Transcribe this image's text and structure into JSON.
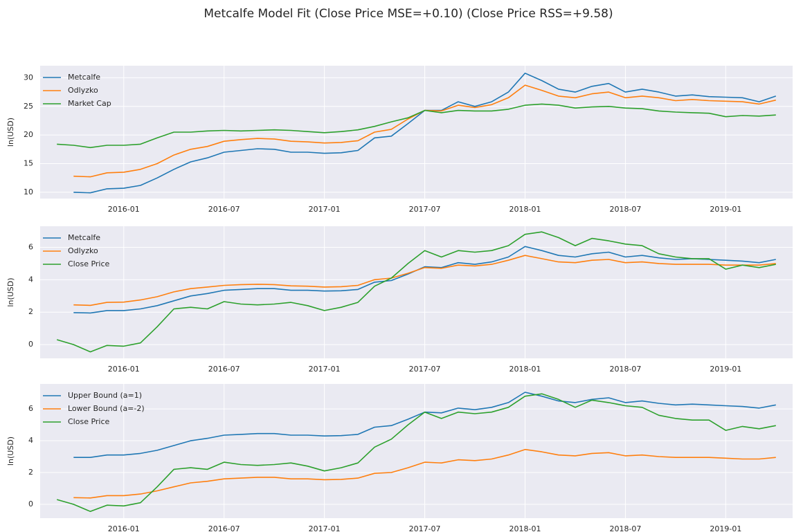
{
  "title": "Metcalfe Model Fit (Close Price MSE=+0.10) (Close Price RSS=+9.58)",
  "chart_data": [
    {
      "type": "line",
      "y_label": "ln(USD)",
      "grid": true,
      "legend": "upper left",
      "xlim": [
        "2015-08",
        "2019-05"
      ],
      "xticks": [
        "2016-01",
        "2016-07",
        "2017-01",
        "2017-07",
        "2018-01",
        "2018-07",
        "2019-01"
      ],
      "ylim": [
        8.9,
        32.1
      ],
      "yticks": [
        10,
        15,
        20,
        25,
        30
      ],
      "x": [
        "2015-09",
        "2015-10",
        "2015-11",
        "2015-12",
        "2016-01",
        "2016-02",
        "2016-03",
        "2016-04",
        "2016-05",
        "2016-06",
        "2016-07",
        "2016-08",
        "2016-09",
        "2016-10",
        "2016-11",
        "2016-12",
        "2017-01",
        "2017-02",
        "2017-03",
        "2017-04",
        "2017-05",
        "2017-06",
        "2017-07",
        "2017-08",
        "2017-09",
        "2017-10",
        "2017-11",
        "2017-12",
        "2018-01",
        "2018-02",
        "2018-03",
        "2018-04",
        "2018-05",
        "2018-06",
        "2018-07",
        "2018-08",
        "2018-09",
        "2018-10",
        "2018-11",
        "2018-12",
        "2019-01",
        "2019-02",
        "2019-03",
        "2019-04"
      ],
      "series": [
        {
          "name": "Metcalfe",
          "color": "#1f77b4",
          "values": [
            null,
            10.0,
            9.9,
            10.6,
            10.7,
            11.2,
            12.5,
            14.0,
            15.3,
            16.0,
            17.0,
            17.3,
            17.6,
            17.5,
            17.0,
            17.0,
            16.8,
            16.9,
            17.3,
            19.5,
            19.8,
            22.0,
            24.3,
            24.3,
            25.8,
            25.0,
            25.8,
            27.5,
            30.8,
            29.5,
            28.0,
            27.5,
            28.5,
            29.0,
            27.5,
            28.0,
            27.5,
            26.8,
            27.0,
            26.7,
            26.6,
            26.5,
            25.8,
            26.8
          ]
        },
        {
          "name": "Odlyzko",
          "color": "#ff7f0e",
          "values": [
            null,
            12.8,
            12.7,
            13.4,
            13.5,
            14.0,
            15.0,
            16.5,
            17.5,
            18.0,
            18.9,
            19.2,
            19.4,
            19.3,
            18.9,
            18.8,
            18.6,
            18.7,
            19.0,
            20.5,
            21.0,
            22.8,
            24.3,
            24.2,
            25.2,
            24.8,
            25.3,
            26.5,
            28.7,
            27.8,
            26.8,
            26.5,
            27.2,
            27.5,
            26.5,
            26.8,
            26.5,
            26.0,
            26.2,
            26.0,
            25.9,
            25.8,
            25.4,
            26.1
          ]
        },
        {
          "name": "Market Cap",
          "color": "#2ca02c",
          "values": [
            18.4,
            18.2,
            17.8,
            18.2,
            18.2,
            18.4,
            19.5,
            20.5,
            20.5,
            20.7,
            20.8,
            20.7,
            20.8,
            20.9,
            20.8,
            20.6,
            20.4,
            20.6,
            20.9,
            21.5,
            22.3,
            23.0,
            24.3,
            23.9,
            24.3,
            24.2,
            24.2,
            24.5,
            25.2,
            25.4,
            25.2,
            24.7,
            24.9,
            25.0,
            24.7,
            24.6,
            24.2,
            24.0,
            23.9,
            23.8,
            23.2,
            23.4,
            23.3,
            23.5
          ]
        }
      ]
    },
    {
      "type": "line",
      "y_label": "ln(USD)",
      "grid": true,
      "legend": "upper left",
      "xlim": [
        "2015-08",
        "2019-05"
      ],
      "xticks": [
        "2016-01",
        "2016-07",
        "2017-01",
        "2017-07",
        "2018-01",
        "2018-07",
        "2019-01"
      ],
      "ylim": [
        -0.85,
        7.3
      ],
      "yticks": [
        0,
        2,
        4,
        6
      ],
      "x": [
        "2015-09",
        "2015-10",
        "2015-11",
        "2015-12",
        "2016-01",
        "2016-02",
        "2016-03",
        "2016-04",
        "2016-05",
        "2016-06",
        "2016-07",
        "2016-08",
        "2016-09",
        "2016-10",
        "2016-11",
        "2016-12",
        "2017-01",
        "2017-02",
        "2017-03",
        "2017-04",
        "2017-05",
        "2017-06",
        "2017-07",
        "2017-08",
        "2017-09",
        "2017-10",
        "2017-11",
        "2017-12",
        "2018-01",
        "2018-02",
        "2018-03",
        "2018-04",
        "2018-05",
        "2018-06",
        "2018-07",
        "2018-08",
        "2018-09",
        "2018-10",
        "2018-11",
        "2018-12",
        "2019-01",
        "2019-02",
        "2019-03",
        "2019-04"
      ],
      "series": [
        {
          "name": "Metcalfe",
          "color": "#1f77b4",
          "values": [
            null,
            1.97,
            1.95,
            2.1,
            2.1,
            2.2,
            2.4,
            2.7,
            3.0,
            3.15,
            3.35,
            3.4,
            3.45,
            3.45,
            3.35,
            3.35,
            3.3,
            3.32,
            3.4,
            3.85,
            3.95,
            4.35,
            4.8,
            4.75,
            5.05,
            4.95,
            5.1,
            5.4,
            6.05,
            5.8,
            5.5,
            5.4,
            5.6,
            5.7,
            5.4,
            5.5,
            5.35,
            5.25,
            5.3,
            5.25,
            5.2,
            5.15,
            5.05,
            5.25
          ]
        },
        {
          "name": "Odlyzko",
          "color": "#ff7f0e",
          "values": [
            null,
            2.45,
            2.42,
            2.6,
            2.62,
            2.75,
            2.95,
            3.25,
            3.45,
            3.55,
            3.65,
            3.7,
            3.72,
            3.7,
            3.62,
            3.6,
            3.55,
            3.57,
            3.65,
            4.0,
            4.1,
            4.4,
            4.75,
            4.7,
            4.9,
            4.85,
            4.95,
            5.2,
            5.5,
            5.3,
            5.1,
            5.05,
            5.2,
            5.25,
            5.05,
            5.1,
            5.0,
            4.95,
            4.95,
            4.95,
            4.9,
            4.9,
            4.9,
            5.0
          ]
        },
        {
          "name": "Close Price",
          "color": "#2ca02c",
          "values": [
            0.3,
            0.0,
            -0.45,
            -0.05,
            -0.1,
            0.1,
            1.1,
            2.2,
            2.3,
            2.2,
            2.65,
            2.5,
            2.45,
            2.5,
            2.6,
            2.4,
            2.1,
            2.3,
            2.6,
            3.6,
            4.1,
            5.0,
            5.8,
            5.4,
            5.8,
            5.7,
            5.8,
            6.1,
            6.8,
            6.95,
            6.6,
            6.1,
            6.55,
            6.4,
            6.2,
            6.1,
            5.6,
            5.4,
            5.3,
            5.3,
            4.65,
            4.9,
            4.75,
            4.95
          ]
        }
      ]
    },
    {
      "type": "line",
      "y_label": "ln(USD)",
      "grid": true,
      "legend": "upper left",
      "xlim": [
        "2015-08",
        "2019-05"
      ],
      "xticks": [
        "2016-01",
        "2016-07",
        "2017-01",
        "2017-07",
        "2018-01",
        "2018-07",
        "2019-01"
      ],
      "ylim": [
        -0.87,
        7.57
      ],
      "yticks": [
        0,
        2,
        4,
        6
      ],
      "x": [
        "2015-09",
        "2015-10",
        "2015-11",
        "2015-12",
        "2016-01",
        "2016-02",
        "2016-03",
        "2016-04",
        "2016-05",
        "2016-06",
        "2016-07",
        "2016-08",
        "2016-09",
        "2016-10",
        "2016-11",
        "2016-12",
        "2017-01",
        "2017-02",
        "2017-03",
        "2017-04",
        "2017-05",
        "2017-06",
        "2017-07",
        "2017-08",
        "2017-09",
        "2017-10",
        "2017-11",
        "2017-12",
        "2018-01",
        "2018-02",
        "2018-03",
        "2018-04",
        "2018-05",
        "2018-06",
        "2018-07",
        "2018-08",
        "2018-09",
        "2018-10",
        "2018-11",
        "2018-12",
        "2019-01",
        "2019-02",
        "2019-03",
        "2019-04"
      ],
      "series": [
        {
          "name": "Upper Bound (a=1)",
          "color": "#1f77b4",
          "values": [
            null,
            2.95,
            2.95,
            3.1,
            3.1,
            3.2,
            3.4,
            3.7,
            4.0,
            4.15,
            4.35,
            4.4,
            4.45,
            4.45,
            4.35,
            4.35,
            4.3,
            4.32,
            4.4,
            4.85,
            4.95,
            5.35,
            5.8,
            5.75,
            6.05,
            5.95,
            6.1,
            6.4,
            7.05,
            6.8,
            6.5,
            6.4,
            6.6,
            6.7,
            6.4,
            6.5,
            6.35,
            6.25,
            6.3,
            6.25,
            6.2,
            6.15,
            6.05,
            6.25
          ]
        },
        {
          "name": "Lower Bound (a=-2)",
          "color": "#ff7f0e",
          "values": [
            null,
            0.42,
            0.4,
            0.55,
            0.55,
            0.65,
            0.85,
            1.1,
            1.35,
            1.45,
            1.6,
            1.65,
            1.7,
            1.7,
            1.6,
            1.6,
            1.55,
            1.57,
            1.65,
            1.95,
            2.0,
            2.3,
            2.65,
            2.6,
            2.8,
            2.75,
            2.85,
            3.1,
            3.45,
            3.3,
            3.1,
            3.05,
            3.2,
            3.25,
            3.05,
            3.1,
            3.0,
            2.95,
            2.95,
            2.95,
            2.9,
            2.85,
            2.85,
            2.95
          ]
        },
        {
          "name": "Close Price",
          "color": "#2ca02c",
          "values": [
            0.3,
            0.0,
            -0.45,
            -0.05,
            -0.1,
            0.1,
            1.1,
            2.2,
            2.3,
            2.2,
            2.65,
            2.5,
            2.45,
            2.5,
            2.6,
            2.4,
            2.1,
            2.3,
            2.6,
            3.6,
            4.1,
            5.0,
            5.8,
            5.4,
            5.8,
            5.7,
            5.8,
            6.1,
            6.8,
            6.95,
            6.6,
            6.1,
            6.55,
            6.4,
            6.2,
            6.1,
            5.6,
            5.4,
            5.3,
            5.3,
            4.65,
            4.9,
            4.75,
            4.95
          ]
        }
      ]
    }
  ]
}
